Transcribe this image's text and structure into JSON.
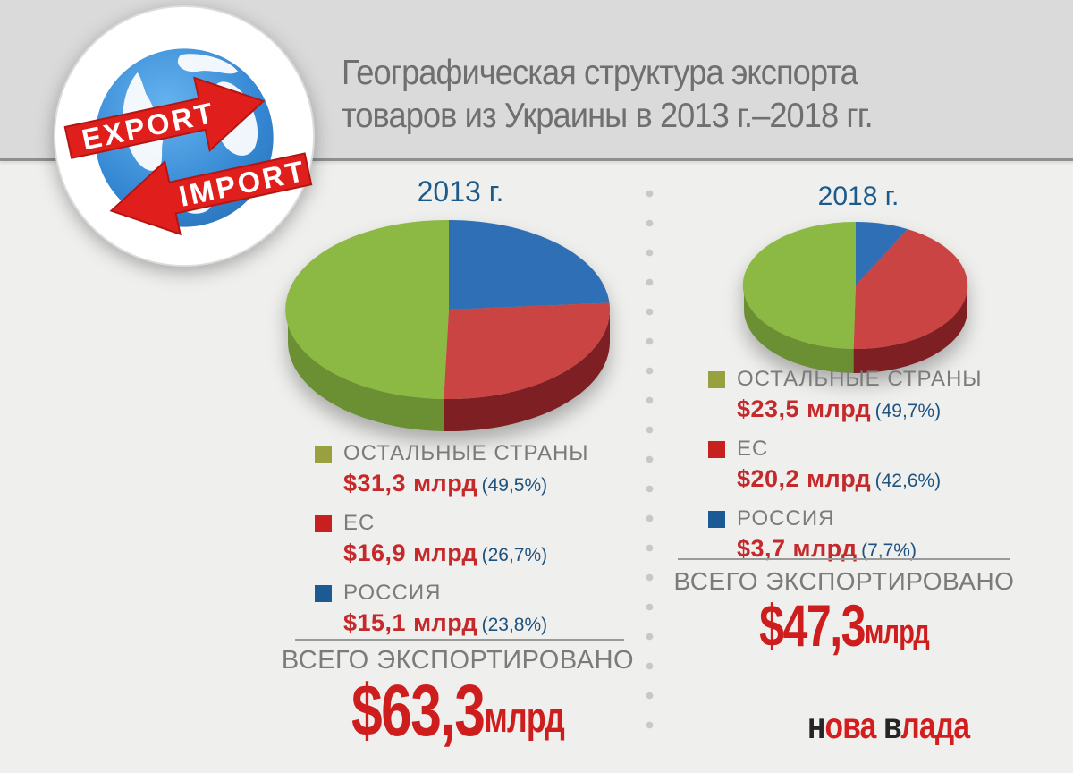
{
  "header": {
    "title_line1": "Географическая структура экспорта",
    "title_line2": "товаров из Украины в 2013 г.–2018 гг."
  },
  "logo": {
    "export_label": "EXPORT",
    "import_label": "IMPORT"
  },
  "brand": {
    "word1_initial": "н",
    "word1_rest": "ова",
    "word2_initial": "в",
    "word2_rest": "лада"
  },
  "colors": {
    "header_bg": "#dadada",
    "body_bg": "#efefed",
    "rule": "#8f8f8f",
    "title_gray": "#6f6f6f",
    "year_blue": "#1c5a8c",
    "label_gray": "#7b7b7b",
    "value_red": "#c42a2c",
    "pct_blue": "#1e5380",
    "total_red": "#ce1d1d",
    "dot_gray": "#c8c8c8",
    "brand_dark": "#252525",
    "brand_red": "#d41e1e",
    "arrow_red": "#e01f1c",
    "globe_blue": "#2f81cf"
  },
  "chart_data": [
    {
      "type": "pie",
      "title": "2013 г.",
      "units": "млрд USD",
      "legend_position": "below",
      "draw_order": [
        2,
        1,
        0
      ],
      "slices": [
        {
          "label": "ОСТАЛЬНЫЕ СТРАНЫ",
          "value": "$31,3 млрд",
          "value_busd": 31.3,
          "pct": 49.5,
          "pct_label": "(49,5%)",
          "color": "#8cb944",
          "side_color": "#6b8f33",
          "swatch": "#99a03f"
        },
        {
          "label": "ЕС",
          "value": "$16,9 млрд",
          "value_busd": 16.9,
          "pct": 26.7,
          "pct_label": "(26,7%)",
          "color": "#c94442",
          "side_color": "#7e2023",
          "swatch": "#c6201f"
        },
        {
          "label": "РОССИЯ",
          "value": "$15,1 млрд",
          "value_busd": 15.1,
          "pct": 23.8,
          "pct_label": "(23,8%)",
          "color": "#2f6fb5",
          "side_color": "#1f4c7e",
          "swatch": "#1b5a94"
        }
      ],
      "total": {
        "label": "ВСЕГО ЭКСПОРТИРОВАНО",
        "value": "$63,3",
        "unit": "млрд",
        "value_busd": 63.3
      }
    },
    {
      "type": "pie",
      "title": "2018 г.",
      "units": "млрд USD",
      "legend_position": "below",
      "draw_order": [
        2,
        1,
        0
      ],
      "slices": [
        {
          "label": "ОСТАЛЬНЫЕ СТРАНЫ",
          "value": "$23,5 млрд",
          "value_busd": 23.5,
          "pct": 49.7,
          "pct_label": "(49,7%)",
          "color": "#8cb944",
          "side_color": "#6b8f33",
          "swatch": "#99a03f"
        },
        {
          "label": "ЕС",
          "value": "$20,2 млрд",
          "value_busd": 20.2,
          "pct": 42.6,
          "pct_label": "(42,6%)",
          "color": "#c94442",
          "side_color": "#7e2023",
          "swatch": "#c6201f"
        },
        {
          "label": "РОССИЯ",
          "value": "$3,7 млрд",
          "value_busd": 3.7,
          "pct": 7.7,
          "pct_label": "(7,7%)",
          "color": "#2f6fb5",
          "side_color": "#1f4c7e",
          "swatch": "#1b5a94"
        }
      ],
      "total": {
        "label": "ВСЕГО ЭКСПОРТИРОВАНО",
        "value": "$47,3",
        "unit": "млрд",
        "value_busd": 47.3
      }
    }
  ]
}
